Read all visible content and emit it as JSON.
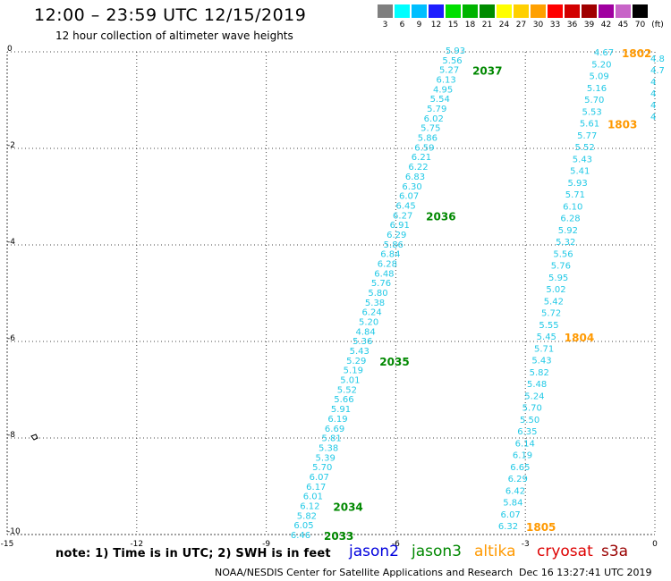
{
  "header": {
    "title": "12:00 – 23:59 UTC 12/15/2019",
    "subtitle": "12 hour collection of altimeter wave heights"
  },
  "color_scale": {
    "levels": [
      {
        "label": "3",
        "color": "#7f7f7f"
      },
      {
        "label": "6",
        "color": "#00ffff"
      },
      {
        "label": "9",
        "color": "#00bfff"
      },
      {
        "label": "12",
        "color": "#1e1eff"
      },
      {
        "label": "15",
        "color": "#00e000"
      },
      {
        "label": "18",
        "color": "#00b400"
      },
      {
        "label": "21",
        "color": "#008c00"
      },
      {
        "label": "24",
        "color": "#ffff00"
      },
      {
        "label": "27",
        "color": "#ffd000"
      },
      {
        "label": "30",
        "color": "#ffa000"
      },
      {
        "label": "33",
        "color": "#ff0000"
      },
      {
        "label": "36",
        "color": "#d20000"
      },
      {
        "label": "39",
        "color": "#a00000"
      },
      {
        "label": "42",
        "color": "#a000a0"
      },
      {
        "label": "45",
        "color": "#c864c8"
      },
      {
        "label": "70",
        "color": "#000000"
      }
    ],
    "unit": "(ft)"
  },
  "axes": {
    "x_ticks": [
      "-15",
      "-12",
      "-9",
      "-6",
      "-3",
      "0"
    ],
    "y_ticks": [
      "0",
      "-2",
      "-4",
      "-6",
      "-8",
      "-10"
    ],
    "lon_range": [
      -15,
      0
    ],
    "lat_range": [
      -10,
      0
    ]
  },
  "tracks": {
    "jason3_values": [
      "5.93",
      "5.56",
      "5.27",
      "6.13",
      "4.95",
      "5.54",
      "5.79",
      "6.02",
      "5.75",
      "5.86",
      "6.59",
      "6.21",
      "6.22",
      "6.83",
      "6.30",
      "6.07",
      "6.45",
      "6.27",
      "6.91",
      "6.29",
      "5.86",
      "6.84",
      "6.28",
      "6.48",
      "5.76",
      "5.80",
      "5.38",
      "6.24",
      "5.20",
      "4.84",
      "5.36",
      "5.43",
      "5.29",
      "5.19",
      "5.01",
      "5.52",
      "5.66",
      "5.91",
      "6.19",
      "6.69",
      "5.81",
      "5.38",
      "5.39",
      "5.70",
      "6.07",
      "6.17",
      "6.01",
      "6.12",
      "5.82",
      "6.05",
      "6.46"
    ],
    "jason3_times": [
      {
        "label": "2037",
        "row": 2
      },
      {
        "label": "2036",
        "row": 17
      },
      {
        "label": "2035",
        "row": 32
      },
      {
        "label": "2034",
        "row": 47
      },
      {
        "label": "2033",
        "row": 50
      }
    ],
    "altika_values": [
      "4.67",
      "5.20",
      "5.09",
      "5.16",
      "5.70",
      "5.53",
      "5.61",
      "5.77",
      "5.52",
      "5.43",
      "5.41",
      "5.93",
      "5.71",
      "6.10",
      "6.28",
      "5.92",
      "5.32",
      "5.56",
      "5.76",
      "5.95",
      "5.02",
      "5.42",
      "5.72",
      "5.55",
      "5.45",
      "5.71",
      "5.43",
      "5.82",
      "5.48",
      "5.24",
      "5.70",
      "5.50",
      "6.35",
      "6.14",
      "6.19",
      "6.65",
      "6.29",
      "6.42",
      "5.84",
      "6.07",
      "6.32"
    ],
    "altika_times": [
      {
        "label": "1802",
        "row": 0
      },
      {
        "label": "1803",
        "row": 6
      },
      {
        "label": "1804",
        "row": 24
      },
      {
        "label": "1805",
        "row": 40
      }
    ],
    "edge_values": [
      "4.8",
      "4.7",
      "4",
      "4",
      "4",
      "4"
    ]
  },
  "legend": {
    "note": "note:  1) Time is in UTC;  2) SWH is in feet",
    "missions": [
      {
        "name": "jason2",
        "color": "#0000dd"
      },
      {
        "name": "jason3",
        "color": "#008800"
      },
      {
        "name": "altika",
        "color": "#ff9900"
      },
      {
        "name": "cryosat",
        "color": "#dd0000"
      },
      {
        "name": "s3a",
        "color": "#990000"
      }
    ]
  },
  "footer": {
    "credit": "NOAA/NESDIS Center for Satellite Applications and Research",
    "timestamp": "Dec 16 13:27:41 UTC 2019"
  }
}
